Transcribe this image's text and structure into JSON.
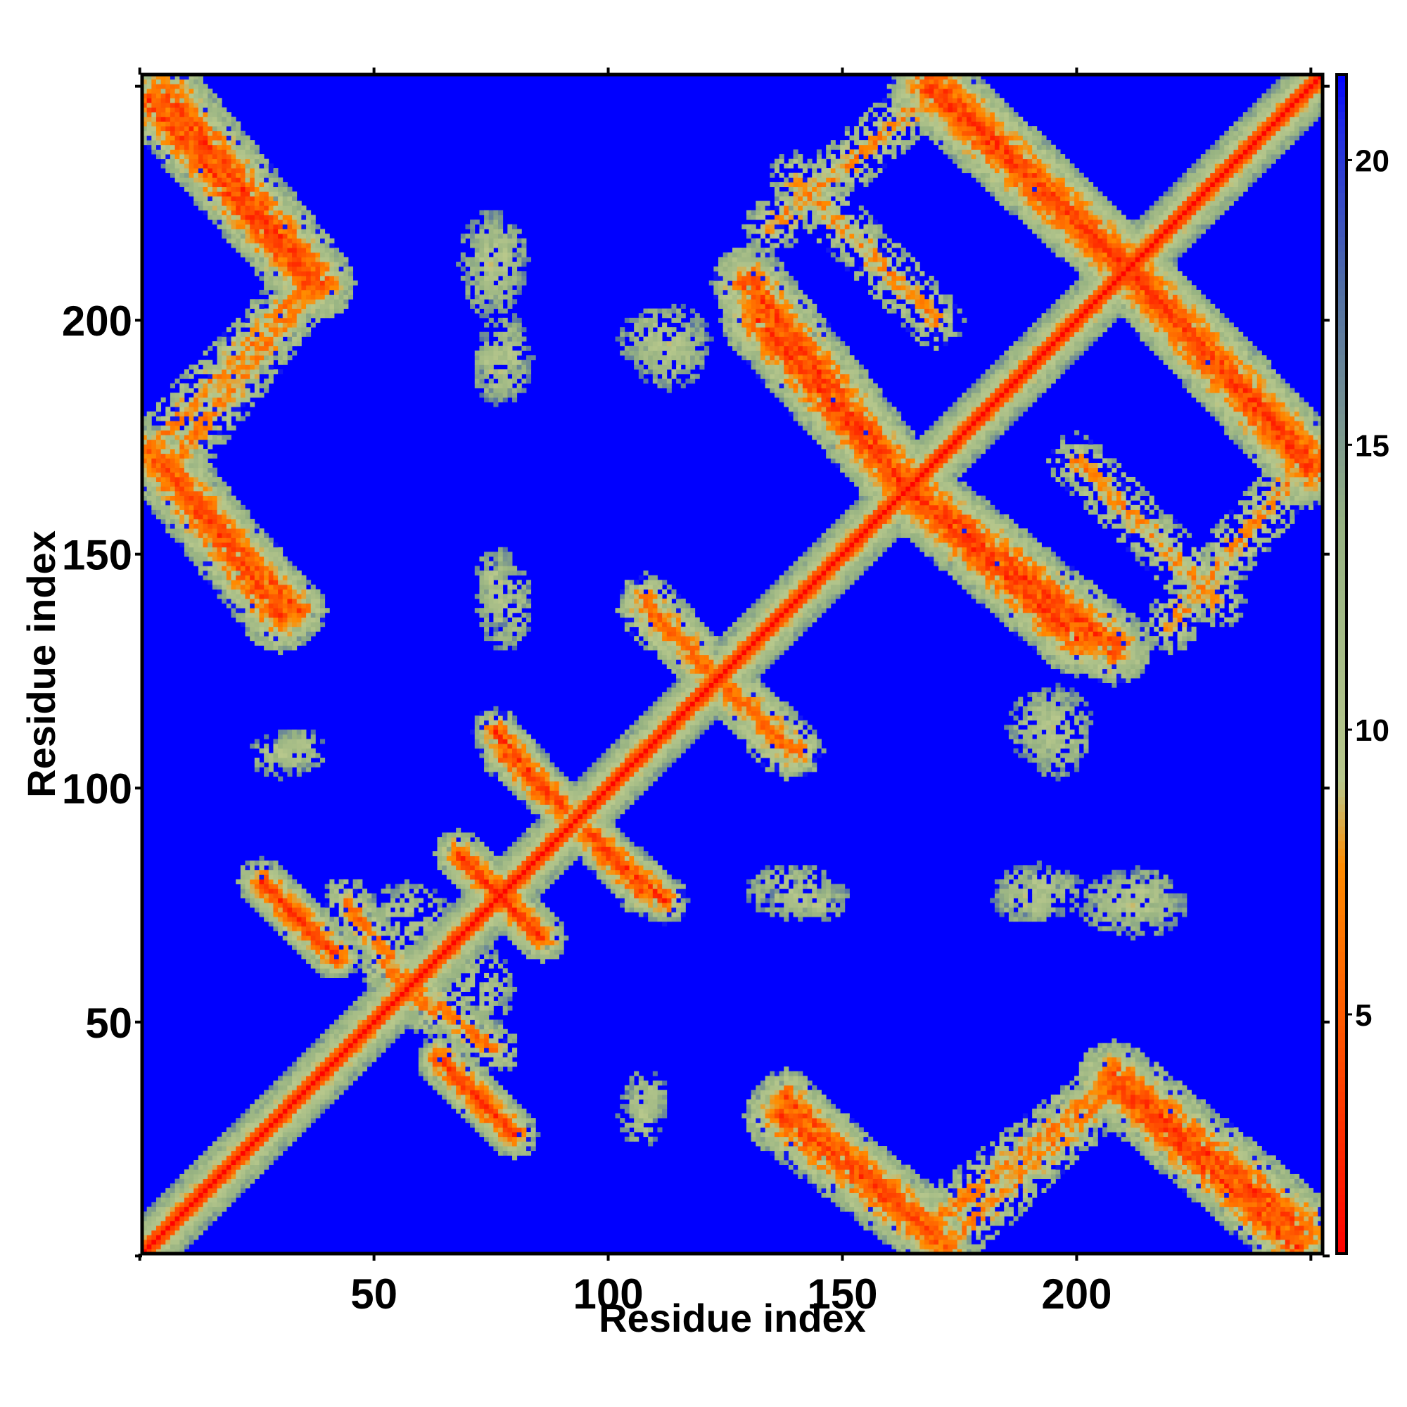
{
  "chart_data": {
    "type": "heatmap",
    "title": "",
    "xlabel": "Residue index",
    "ylabel": "Residue index",
    "xlim": [
      1,
      252
    ],
    "ylim": [
      1,
      252
    ],
    "x_ticks": [
      "50",
      "100",
      "150",
      "200"
    ],
    "y_ticks": [
      "50",
      "100",
      "150",
      "200"
    ],
    "x_tick_values": [
      50,
      100,
      150,
      200
    ],
    "y_tick_values": [
      50,
      100,
      150,
      200
    ],
    "colorbar": {
      "ticks": [
        "5",
        "10",
        "15",
        "20"
      ],
      "tick_values": [
        5,
        10,
        15,
        20
      ],
      "range": [
        0.8,
        21.5
      ],
      "colors": {
        "low": "#ff0000",
        "mid_low": "#ff8c00",
        "mid": "#b4c98c",
        "high": "#4a6fa5",
        "max": "#0000ff"
      }
    },
    "background_value": 21.5,
    "diagonal_half_width": 8,
    "bands": [
      {
        "x": [
          2,
          36
        ],
        "y": [
          247,
          208
        ],
        "width": 7,
        "dens": 0.9,
        "core": 3.4
      },
      {
        "x": [
          36,
          2
        ],
        "y": [
          208,
          172
        ],
        "width": 6,
        "dens": 0.55,
        "core": 6.5
      },
      {
        "x": [
          2,
          34
        ],
        "y": [
          172,
          138
        ],
        "width": 6,
        "dens": 0.85,
        "core": 4.2
      },
      {
        "x": [
          132,
          162
        ],
        "y": [
          200,
          166
        ],
        "width": 8,
        "dens": 0.9,
        "core": 3.2
      },
      {
        "x": [
          162,
          208
        ],
        "y": [
          166,
          130
        ],
        "width": 8,
        "dens": 0.9,
        "core": 3.3
      },
      {
        "x": [
          170,
          212
        ],
        "y": [
          250,
          210
        ],
        "width": 8,
        "dens": 0.9,
        "core": 3.3
      },
      {
        "x": [
          212,
          250
        ],
        "y": [
          210,
          168
        ],
        "width": 8,
        "dens": 0.9,
        "core": 3.3
      },
      {
        "x": [
          140,
          170
        ],
        "y": [
          230,
          200
        ],
        "width": 6,
        "dens": 0.45,
        "core": 7.0
      },
      {
        "x": [
          245,
          220
        ],
        "y": [
          165,
          135
        ],
        "width": 6,
        "dens": 0.45,
        "core": 7.0
      },
      {
        "x": [
          137,
          168
        ],
        "y": [
          30,
          6
        ],
        "width": 8,
        "dens": 0.9,
        "core": 3.6
      },
      {
        "x": [
          168,
          206
        ],
        "y": [
          6,
          36
        ],
        "width": 6,
        "dens": 0.55,
        "core": 6.5
      },
      {
        "x": [
          208,
          248
        ],
        "y": [
          38,
          6
        ],
        "width": 8,
        "dens": 0.9,
        "core": 3.2
      },
      {
        "x": [
          28,
          38
        ],
        "y": [
          78,
          68
        ],
        "width": 5,
        "dens": 0.85,
        "core": 3.0
      },
      {
        "x": [
          68,
          84
        ],
        "y": [
          86,
          70
        ],
        "width": 5,
        "dens": 0.85,
        "core": 3.0
      },
      {
        "x": [
          78,
          90
        ],
        "y": [
          107,
          96
        ],
        "width": 5,
        "dens": 0.85,
        "core": 3.2
      },
      {
        "x": [
          96,
          112
        ],
        "y": [
          90,
          76
        ],
        "width": 5,
        "dens": 0.85,
        "core": 3.0
      },
      {
        "x": [
          64,
          80
        ],
        "y": [
          42,
          26
        ],
        "width": 5,
        "dens": 0.85,
        "core": 3.4
      },
      {
        "x": [
          108,
          140
        ],
        "y": [
          138,
          108
        ],
        "width": 6,
        "dens": 0.65,
        "core": 5.5
      },
      {
        "x": [
          44,
          62
        ],
        "y": [
          76,
          52
        ],
        "width": 5,
        "dens": 0.6,
        "core": 6.0
      }
    ],
    "blobs": [
      {
        "cx": 75,
        "cy": 212,
        "rx": 7,
        "ry": 12
      },
      {
        "cx": 76,
        "cy": 190,
        "rx": 5,
        "ry": 8
      },
      {
        "cx": 76,
        "cy": 143,
        "rx": 5,
        "ry": 9
      },
      {
        "cx": 113,
        "cy": 193,
        "rx": 8,
        "ry": 8
      },
      {
        "cx": 30,
        "cy": 107,
        "rx": 7,
        "ry": 5
      },
      {
        "cx": 139,
        "cy": 78,
        "rx": 10,
        "ry": 6
      },
      {
        "cx": 192,
        "cy": 78,
        "rx": 10,
        "ry": 6
      },
      {
        "cx": 213,
        "cy": 77,
        "rx": 10,
        "ry": 6
      },
      {
        "cx": 196,
        "cy": 112,
        "rx": 8,
        "ry": 10
      },
      {
        "cx": 108,
        "cy": 34,
        "rx": 5,
        "ry": 6
      },
      {
        "cx": 57,
        "cy": 72,
        "rx": 10,
        "ry": 8
      }
    ]
  }
}
